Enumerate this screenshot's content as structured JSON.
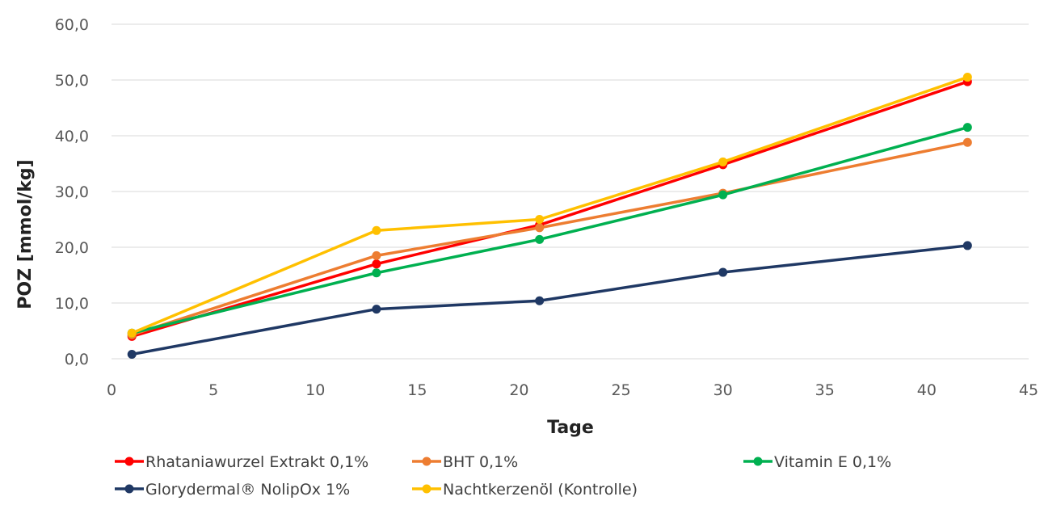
{
  "chart_data": {
    "type": "line",
    "xlabel": "Tage",
    "ylabel": "POZ [mmol/kg]",
    "xlim": [
      0,
      45
    ],
    "ylim": [
      0,
      60
    ],
    "x_ticks": [
      "0",
      "5",
      "10",
      "15",
      "20",
      "25",
      "30",
      "35",
      "40",
      "45"
    ],
    "y_ticks": [
      "0,0",
      "10,0",
      "20,0",
      "30,0",
      "40,0",
      "50,0",
      "60,0"
    ],
    "grid": "horizontal",
    "legend_position": "bottom",
    "x": [
      1,
      13,
      21,
      30,
      42
    ],
    "series": [
      {
        "name": "Rhataniawurzel Extrakt 0,1%",
        "color": "#ff0000",
        "values": [
          4.0,
          17.0,
          24.0,
          34.8,
          49.7
        ]
      },
      {
        "name": "BHT 0,1%",
        "color": "#ed7d31",
        "values": [
          4.3,
          18.5,
          23.5,
          29.7,
          38.8
        ]
      },
      {
        "name": "Vitamin E 0,1%",
        "color": "#00b050",
        "values": [
          4.6,
          15.4,
          21.4,
          29.4,
          41.5
        ]
      },
      {
        "name": "Glorydermal® NolipOx  1%",
        "color": "#1f3864",
        "values": [
          0.8,
          8.9,
          10.4,
          15.5,
          20.3
        ]
      },
      {
        "name": "Nachtkerzenöl (Kontrolle)",
        "color": "#ffc000",
        "values": [
          4.6,
          23.0,
          25.0,
          35.3,
          50.5
        ]
      }
    ]
  }
}
